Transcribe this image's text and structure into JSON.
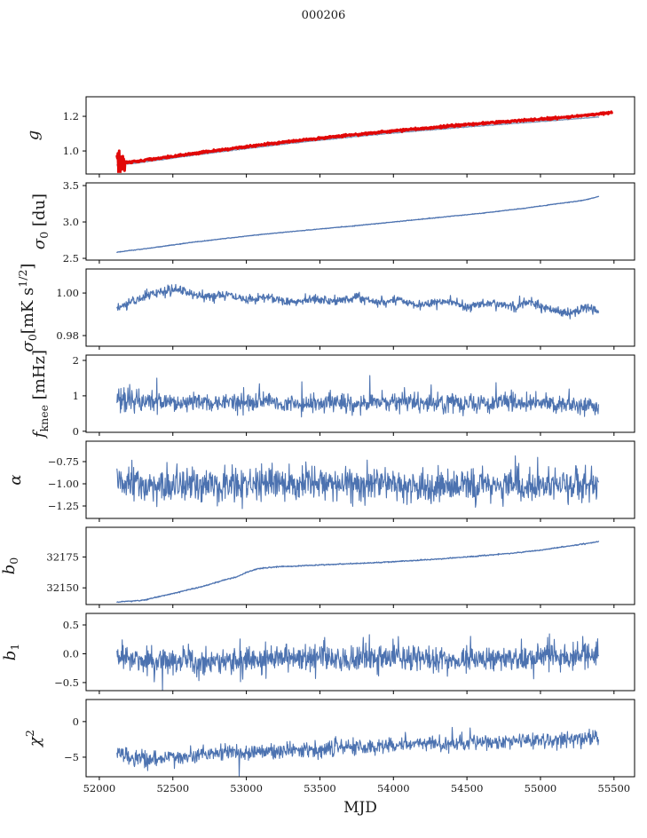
{
  "figure": {
    "title": "000206",
    "xlabel": "MJD",
    "background": "#ffffff",
    "frame_color": "#000000",
    "text_color": "#1a1a1a",
    "accent_blue": "#4c72b0",
    "accent_red": "#e10808",
    "muted_blue": "#7d96b8"
  },
  "chart_data": {
    "type": "line",
    "title": "000206",
    "xlabel": "MJD",
    "xlim": [
      51910,
      55640
    ],
    "x_ticks": [
      {
        "v": 52000,
        "label": "52000"
      },
      {
        "v": 52500,
        "label": "52500"
      },
      {
        "v": 53000,
        "label": "53000"
      },
      {
        "v": 53500,
        "label": "53500"
      },
      {
        "v": 54000,
        "label": "54000"
      },
      {
        "v": 54500,
        "label": "54500"
      },
      {
        "v": 55000,
        "label": "55000"
      },
      {
        "v": 55500,
        "label": "55500"
      }
    ],
    "points_per_series": 1100,
    "panels": [
      {
        "id": "g",
        "ylabel": [
          {
            "t": "g",
            "s": "i"
          }
        ],
        "ylim": [
          0.867,
          1.313
        ],
        "yticks": [
          {
            "v": 1.0,
            "label": "1.0"
          },
          {
            "v": 1.2,
            "label": "1.2"
          }
        ],
        "series": [
          {
            "name": "g-reference",
            "color": "#7d96b8",
            "width": 1.3,
            "noise": 0.0012,
            "seed": 11,
            "keypoints": [
              [
                52120,
                0.92
              ],
              [
                52250,
                0.93
              ],
              [
                52450,
                0.953
              ],
              [
                52700,
                0.982
              ],
              [
                53000,
                1.014
              ],
              [
                53300,
                1.044
              ],
              [
                53600,
                1.071
              ],
              [
                53900,
                1.096
              ],
              [
                54200,
                1.118
              ],
              [
                54500,
                1.139
              ],
              [
                54800,
                1.158
              ],
              [
                55000,
                1.17
              ],
              [
                55200,
                1.183
              ],
              [
                55395,
                1.196
              ]
            ]
          },
          {
            "name": "g-calibrated",
            "color": "#e10808",
            "width": 3,
            "noise": 0.0028,
            "seed": 12,
            "start_noise": {
              "until": 52175,
              "sigma": 0.03
            },
            "keypoints": [
              [
                52120,
                0.928
              ],
              [
                52250,
                0.94
              ],
              [
                52450,
                0.963
              ],
              [
                52700,
                0.992
              ],
              [
                53000,
                1.025
              ],
              [
                53300,
                1.055
              ],
              [
                53600,
                1.083
              ],
              [
                53900,
                1.108
              ],
              [
                54200,
                1.13
              ],
              [
                54500,
                1.152
              ],
              [
                54800,
                1.172
              ],
              [
                55000,
                1.184
              ],
              [
                55200,
                1.198
              ],
              [
                55350,
                1.21
              ],
              [
                55485,
                1.222
              ]
            ]
          }
        ],
        "vlines": [
          {
            "x": 52136,
            "y0": 0.873,
            "y1": 0.966,
            "color": "#e10808",
            "width": 5
          }
        ]
      },
      {
        "id": "sigma0-du",
        "ylabel": [
          {
            "t": "σ",
            "s": "i"
          },
          {
            "t": "0",
            "s": "sub"
          },
          {
            "t": " [du]",
            "s": "n"
          }
        ],
        "ylim": [
          2.476,
          3.537
        ],
        "yticks": [
          {
            "v": 2.5,
            "label": "2.5"
          },
          {
            "v": 3.0,
            "label": "3.0"
          },
          {
            "v": 3.5,
            "label": "3.5"
          }
        ],
        "series": [
          {
            "name": "sigma0-du",
            "color": "#4c72b0",
            "width": 1.3,
            "noise": 0.0022,
            "seed": 21,
            "keypoints": [
              [
                52120,
                2.585
              ],
              [
                52350,
                2.642
              ],
              [
                52600,
                2.712
              ],
              [
                52850,
                2.772
              ],
              [
                53100,
                2.828
              ],
              [
                53400,
                2.885
              ],
              [
                53700,
                2.94
              ],
              [
                54000,
                3.0
              ],
              [
                54300,
                3.06
              ],
              [
                54600,
                3.12
              ],
              [
                54900,
                3.19
              ],
              [
                55150,
                3.26
              ],
              [
                55300,
                3.3
              ],
              [
                55395,
                3.35
              ]
            ]
          }
        ]
      },
      {
        "id": "sigma0-mks",
        "ylabel": [
          {
            "t": "σ",
            "s": "i"
          },
          {
            "t": "0",
            "s": "sub"
          },
          {
            "t": "[mK s",
            "s": "n"
          },
          {
            "t": "1/2",
            "s": "sup"
          },
          {
            "t": "]",
            "s": "n"
          }
        ],
        "ylim": [
          0.975,
          1.0113
        ],
        "yticks": [
          {
            "v": 0.98,
            "label": "0.98"
          },
          {
            "v": 1.0,
            "label": "1.00"
          }
        ],
        "series": [
          {
            "name": "sigma0-mks",
            "color": "#4c72b0",
            "width": 1.2,
            "noise": 0.0011,
            "seed": 31,
            "keypoints": [
              [
                52120,
                0.9925
              ],
              [
                52250,
                0.997
              ],
              [
                52400,
                1.0005
              ],
              [
                52550,
                1.0015
              ],
              [
                52700,
                0.998
              ],
              [
                52850,
                0.9995
              ],
              [
                53000,
                0.9965
              ],
              [
                53150,
                0.9985
              ],
              [
                53300,
                0.9955
              ],
              [
                53450,
                0.9975
              ],
              [
                53600,
                0.996
              ],
              [
                53750,
                0.998
              ],
              [
                53900,
                0.9955
              ],
              [
                54050,
                0.997
              ],
              [
                54200,
                0.994
              ],
              [
                54350,
                0.9965
              ],
              [
                54500,
                0.9935
              ],
              [
                54650,
                0.9955
              ],
              [
                54800,
                0.9935
              ],
              [
                54950,
                0.9955
              ],
              [
                55100,
                0.9915
              ],
              [
                55200,
                0.99
              ],
              [
                55300,
                0.9935
              ],
              [
                55395,
                0.991
              ]
            ]
          }
        ]
      },
      {
        "id": "fknee",
        "ylabel": [
          {
            "t": "f",
            "s": "i"
          },
          {
            "t": "knee",
            "s": "sub"
          },
          {
            "t": " [mHz]",
            "s": "n"
          }
        ],
        "ylim": [
          -0.03,
          2.15
        ],
        "yticks": [
          {
            "v": 0,
            "label": "0"
          },
          {
            "v": 1,
            "label": "1"
          },
          {
            "v": 2,
            "label": "2"
          }
        ],
        "series": [
          {
            "name": "fknee",
            "color": "#4c72b0",
            "width": 1.1,
            "noise": 0.13,
            "seed": 41,
            "spike_prob": 0.03,
            "spike_scale": 0.3,
            "start_noise": {
              "until": 52260,
              "sigma": 0.2
            },
            "keypoints": [
              [
                52120,
                0.92
              ],
              [
                52250,
                0.84
              ],
              [
                52500,
                0.8
              ],
              [
                53000,
                0.82
              ],
              [
                53500,
                0.8
              ],
              [
                54000,
                0.82
              ],
              [
                54500,
                0.78
              ],
              [
                55000,
                0.8
              ],
              [
                55395,
                0.76
              ]
            ]
          }
        ]
      },
      {
        "id": "alpha",
        "ylabel": [
          {
            "t": "α",
            "s": "i"
          }
        ],
        "ylim": [
          -1.39,
          -0.52
        ],
        "yticks": [
          {
            "v": -0.75,
            "label": "−0.75"
          },
          {
            "v": -1.0,
            "label": "−1.00"
          },
          {
            "v": -1.25,
            "label": "−1.25"
          }
        ],
        "series": [
          {
            "name": "alpha",
            "color": "#4c72b0",
            "width": 1.1,
            "noise": 0.095,
            "seed": 51,
            "keypoints": [
              [
                52120,
                -1.0
              ],
              [
                52400,
                -1.03
              ],
              [
                53000,
                -1.02
              ],
              [
                53600,
                -1.0
              ],
              [
                54200,
                -1.03
              ],
              [
                54800,
                -1.0
              ],
              [
                55395,
                -1.02
              ]
            ]
          }
        ]
      },
      {
        "id": "b0",
        "ylabel": [
          {
            "t": "b",
            "s": "i"
          },
          {
            "t": "0",
            "s": "sub"
          }
        ],
        "ylim": [
          32136.5,
          32199
        ],
        "yticks": [
          {
            "v": 32150,
            "label": "32150"
          },
          {
            "v": 32175,
            "label": "32175"
          }
        ],
        "series": [
          {
            "name": "b0",
            "color": "#4c72b0",
            "width": 1.3,
            "noise": 0.22,
            "seed": 61,
            "keypoints": [
              [
                52120,
                32138.5
              ],
              [
                52300,
                32140
              ],
              [
                52500,
                32145.5
              ],
              [
                52700,
                32151
              ],
              [
                52870,
                32157
              ],
              [
                52930,
                32158.5
              ],
              [
                53000,
                32162.5
              ],
              [
                53080,
                32165.5
              ],
              [
                53200,
                32167
              ],
              [
                53400,
                32168
              ],
              [
                53600,
                32169
              ],
              [
                53900,
                32170.5
              ],
              [
                54200,
                32172.5
              ],
              [
                54500,
                32175
              ],
              [
                54800,
                32178
              ],
              [
                55000,
                32180.5
              ],
              [
                55200,
                32184
              ],
              [
                55320,
                32186
              ],
              [
                55395,
                32187.5
              ]
            ]
          }
        ]
      },
      {
        "id": "b1",
        "ylabel": [
          {
            "t": "b",
            "s": "i"
          },
          {
            "t": "1",
            "s": "sub"
          }
        ],
        "ylim": [
          -0.64,
          0.7
        ],
        "yticks": [
          {
            "v": -0.5,
            "label": "−0.5"
          },
          {
            "v": 0.0,
            "label": "0.0"
          },
          {
            "v": 0.5,
            "label": "0.5"
          }
        ],
        "series": [
          {
            "name": "b1",
            "color": "#4c72b0",
            "width": 1.1,
            "noise": 0.12,
            "seed": 71,
            "spikes": [
              {
                "x": 52430,
                "dy": -0.42
              },
              {
                "x": 52960,
                "dy": -0.45
              },
              {
                "x": 55060,
                "dy": 0.5
              },
              {
                "x": 55380,
                "dy": 0.42
              }
            ],
            "keypoints": [
              [
                52120,
                0.0
              ],
              [
                52250,
                -0.13
              ],
              [
                52500,
                -0.12
              ],
              [
                52800,
                -0.15
              ],
              [
                53000,
                -0.08
              ],
              [
                53300,
                -0.05
              ],
              [
                53600,
                -0.1
              ],
              [
                54000,
                -0.06
              ],
              [
                54400,
                -0.1
              ],
              [
                54800,
                -0.07
              ],
              [
                55200,
                -0.05
              ],
              [
                55395,
                -0.03
              ]
            ]
          }
        ]
      },
      {
        "id": "chi2",
        "ylabel": [
          {
            "t": "χ",
            "s": "i"
          },
          {
            "t": "2",
            "s": "sup"
          }
        ],
        "ylim": [
          -7.75,
          3.1
        ],
        "yticks": [
          {
            "v": -5,
            "label": "−5"
          },
          {
            "v": 0,
            "label": "0"
          }
        ],
        "series": [
          {
            "name": "chi2",
            "color": "#4c72b0",
            "width": 1.1,
            "noise": 0.55,
            "seed": 81,
            "spikes": [
              {
                "x": 52950,
                "dy": -2.4
              }
            ],
            "keypoints": [
              [
                52120,
                -4.3
              ],
              [
                52230,
                -5.1
              ],
              [
                52350,
                -5.3
              ],
              [
                52500,
                -5.0
              ],
              [
                52700,
                -4.6
              ],
              [
                52900,
                -4.2
              ],
              [
                53100,
                -4.3
              ],
              [
                53300,
                -3.9
              ],
              [
                53500,
                -3.9
              ],
              [
                53700,
                -3.6
              ],
              [
                53900,
                -3.4
              ],
              [
                54100,
                -3.2
              ],
              [
                54300,
                -3.1
              ],
              [
                54500,
                -2.9
              ],
              [
                54700,
                -2.9
              ],
              [
                54900,
                -2.7
              ],
              [
                55100,
                -2.6
              ],
              [
                55250,
                -2.4
              ],
              [
                55395,
                -2.1
              ]
            ]
          }
        ]
      }
    ]
  }
}
